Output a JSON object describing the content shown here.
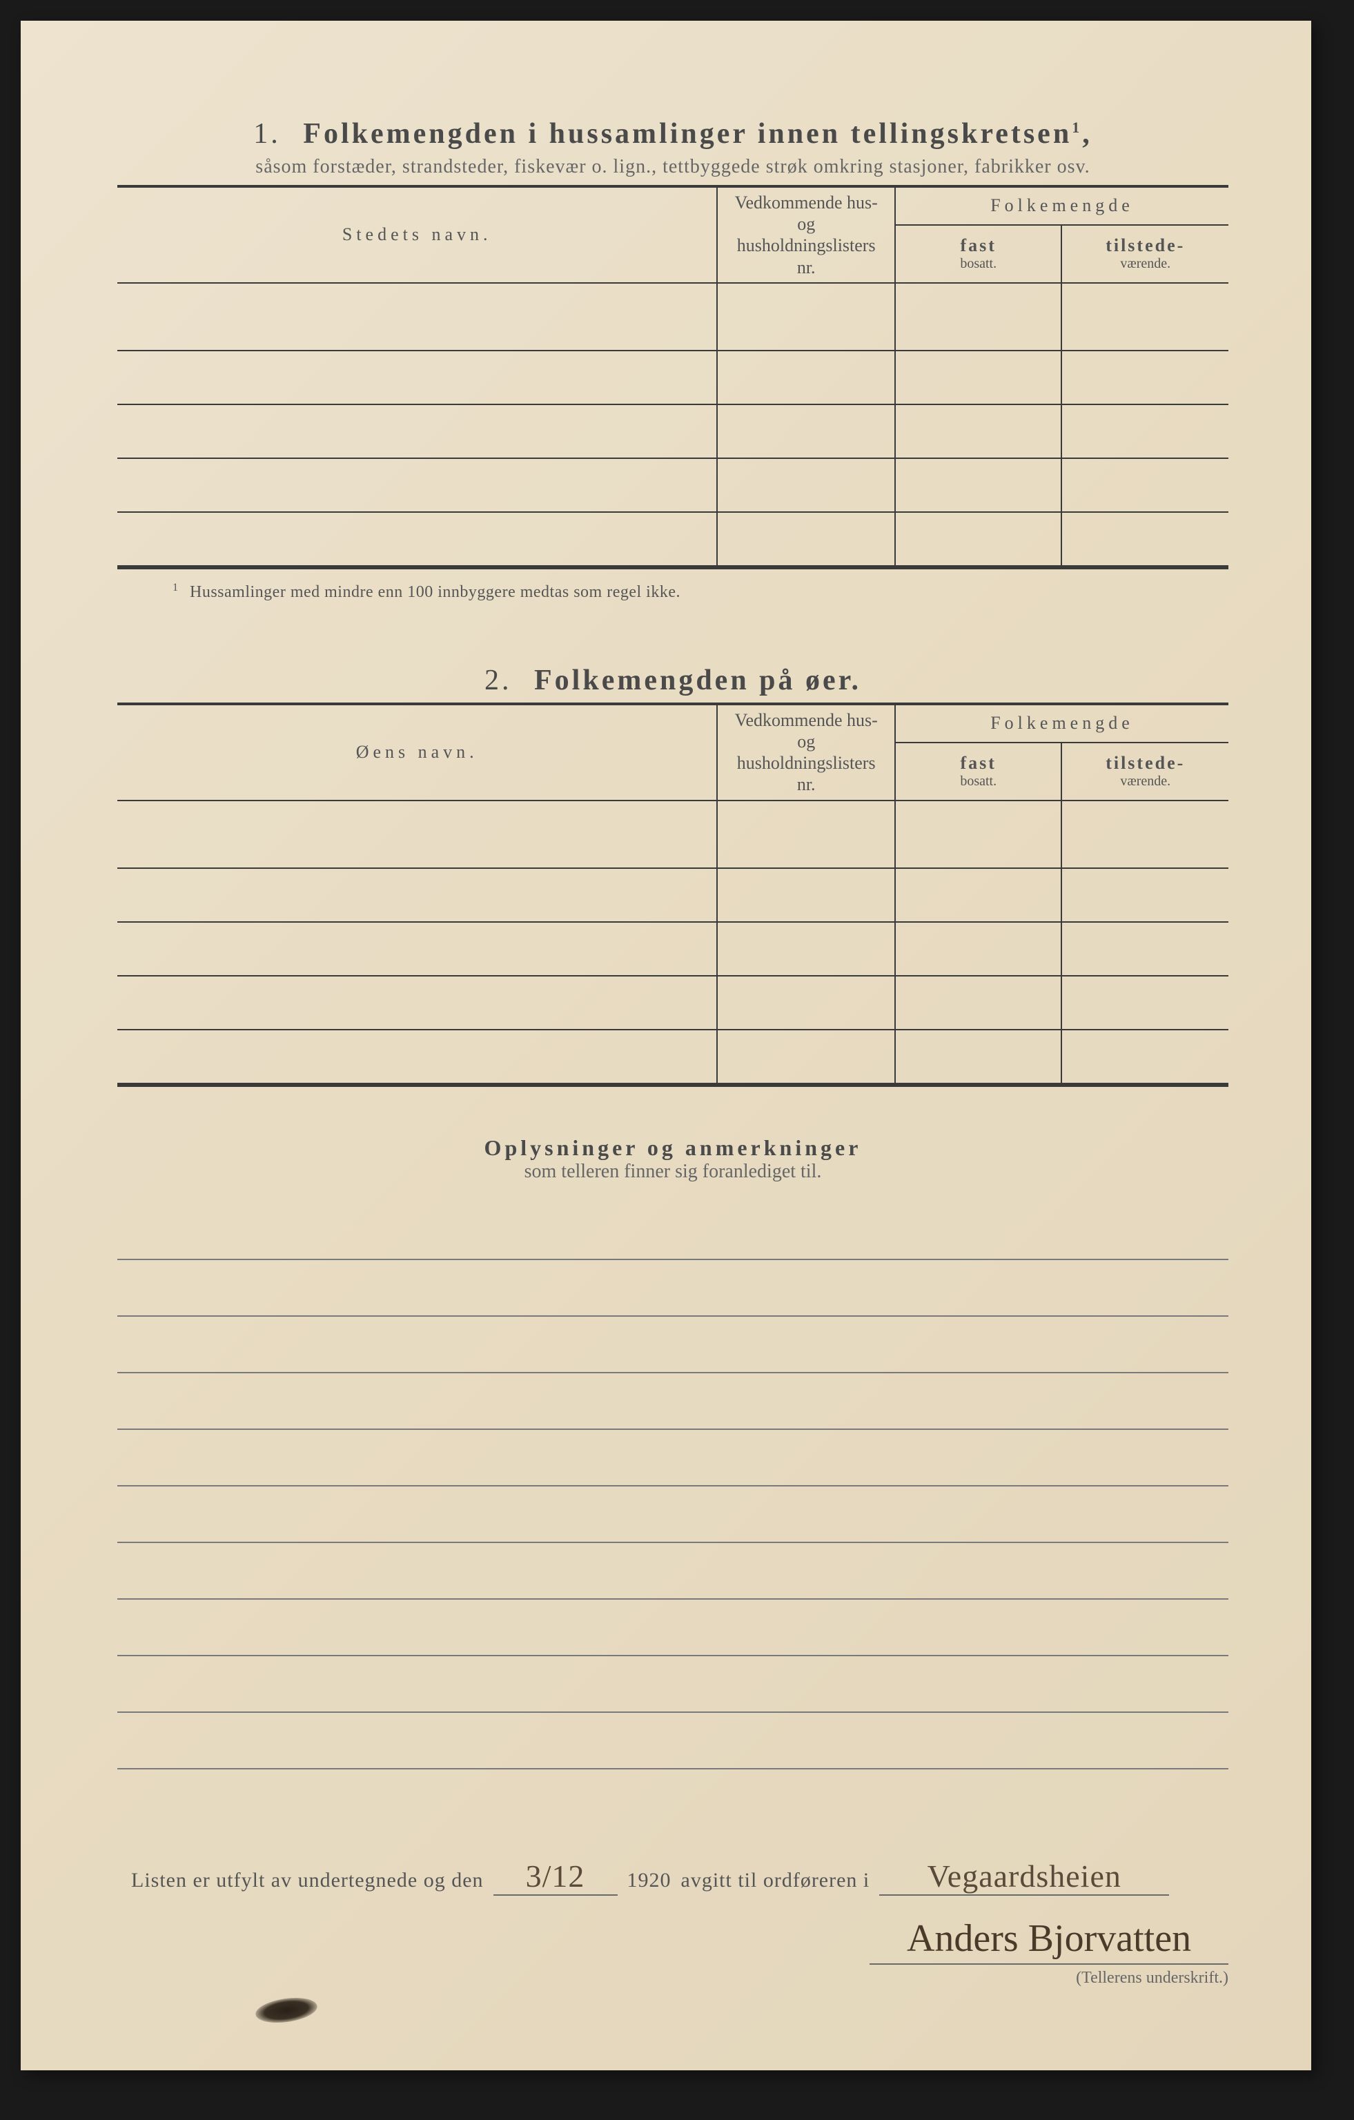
{
  "section1": {
    "number": "1.",
    "title": "Folkemengden i hussamlinger innen tellingskretsen",
    "title_sup": "1",
    "subtitle": "såsom forstæder, strandsteder, fiskevær o. lign., tettbyggede strøk omkring stasjoner, fabrikker osv.",
    "col_name": "Stedets navn.",
    "col_ref_l1": "Vedkommende hus- og",
    "col_ref_l2": "husholdningslisters",
    "col_ref_l3": "nr.",
    "col_pop": "Folkemengde",
    "col_fast": "fast",
    "col_fast2": "bosatt.",
    "col_til": "tilstede-",
    "col_til2": "værende.",
    "footnote": "Hussamlinger med mindre enn 100 innbyggere medtas som regel ikke.",
    "footnote_mark": "1"
  },
  "section2": {
    "number": "2.",
    "title": "Folkemengden på øer.",
    "col_name": "Øens navn.",
    "col_ref_l1": "Vedkommende hus- og",
    "col_ref_l2": "husholdningslisters",
    "col_ref_l3": "nr.",
    "col_pop": "Folkemengde",
    "col_fast": "fast",
    "col_fast2": "bosatt.",
    "col_til": "tilstede-",
    "col_til2": "værende."
  },
  "section3": {
    "title": "Oplysninger og anmerkninger",
    "subtitle": "som telleren finner sig foranlediget til."
  },
  "bottom": {
    "text1": "Listen er utfylt av undertegnede og den",
    "date": "3/12",
    "year": "1920",
    "text2": "avgitt til ordføreren i",
    "place": "Vegaardsheien",
    "signature": "Anders Bjorvatten",
    "sig_label": "(Tellerens underskrift.)"
  },
  "layout": {
    "ruled_lines": 10,
    "table1_rows": 5,
    "table2_rows": 5
  },
  "colors": {
    "paper": "#e8dcc3",
    "ink": "#3a3a3a",
    "text": "#555555",
    "hand": "#4a3a2a"
  }
}
